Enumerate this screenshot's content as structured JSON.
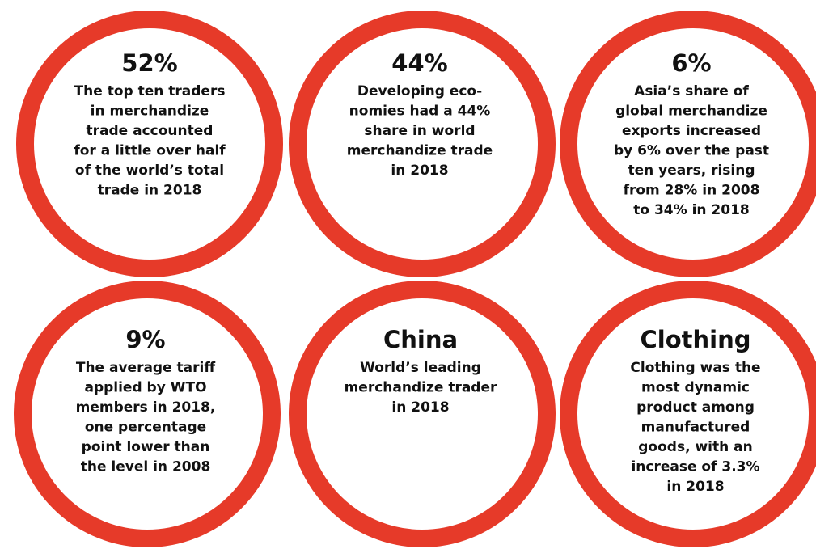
{
  "items": [
    {
      "headline": "52%",
      "lines": [
        "The top ten traders",
        "in merchandize",
        "trade accounted",
        "for a little over half",
        "of the world’s total",
        "trade in 2018"
      ]
    },
    {
      "headline": "44%",
      "lines": [
        "Developing eco-",
        "nomies had a 44%",
        "share in world",
        "merchandize trade",
        "in 2018"
      ]
    },
    {
      "headline": "6%",
      "lines": [
        "Asia’s share of",
        "global merchandize",
        "exports increased",
        "by 6% over the past",
        "ten years, rising",
        "from 28% in 2008",
        "to 34% in 2018"
      ]
    },
    {
      "headline": "9%",
      "lines": [
        "The average tariff",
        "applied by WTO",
        "members in 2018,",
        "one percentage",
        "point lower than",
        "the level in 2008"
      ]
    },
    {
      "headline": "China",
      "lines": [
        "World’s leading",
        "merchandize trader",
        "in 2018"
      ]
    },
    {
      "headline": "Clothing",
      "lines": [
        "Clothing was the",
        "most dynamic",
        "product among",
        "manufactured",
        "goods, with an",
        "increase of 3.3%",
        "in 2018"
      ]
    }
  ]
}
